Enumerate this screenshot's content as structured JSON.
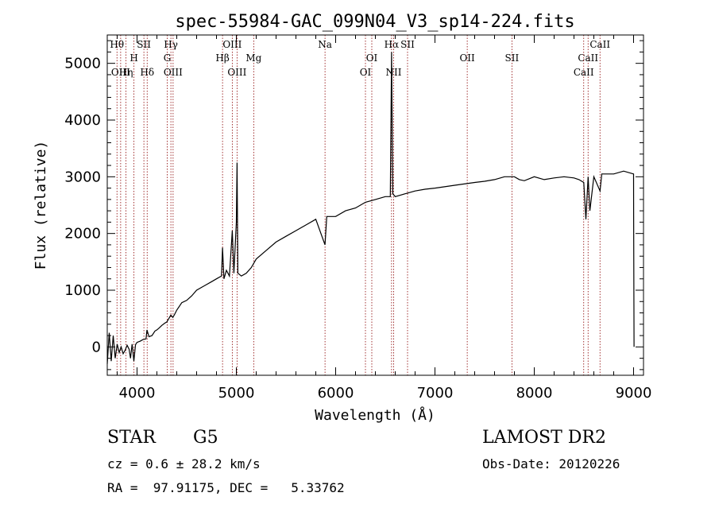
{
  "chart_data": {
    "type": "line",
    "title": "spec-55984-GAC_099N04_V3_sp14-224.fits",
    "xlabel": "Wavelength (Å)",
    "ylabel": "Flux (relative)",
    "xlim": [
      3700,
      9100
    ],
    "ylim": [
      -500,
      5500
    ],
    "xticks": [
      4000,
      5000,
      6000,
      7000,
      8000,
      9000
    ],
    "yticks": [
      0,
      1000,
      2000,
      3000,
      4000,
      5000
    ],
    "grid": false,
    "series": [
      {
        "x": [
          3700,
          3720,
          3740,
          3760,
          3780,
          3800,
          3820,
          3840,
          3860,
          3880,
          3900,
          3920,
          3934,
          3950,
          3968,
          3985,
          4000,
          4030,
          4060,
          4090,
          4100,
          4120,
          4150,
          4180,
          4200,
          4220,
          4250,
          4280,
          4300,
          4320,
          4340,
          4361,
          4380,
          4400,
          4420,
          4450,
          4500,
          4550,
          4600,
          4650,
          4700,
          4750,
          4800,
          4850,
          4861,
          4875,
          4900,
          4930,
          4959,
          4975,
          5000,
          5007,
          5015,
          5050,
          5100,
          5150,
          5200,
          5300,
          5400,
          5500,
          5600,
          5700,
          5800,
          5893,
          5910,
          6000,
          6100,
          6200,
          6300,
          6400,
          6500,
          6550,
          6563,
          6575,
          6600,
          6700,
          6800,
          6900,
          7000,
          7200,
          7400,
          7500,
          7600,
          7700,
          7800,
          7850,
          7900,
          8000,
          8100,
          8200,
          8300,
          8400,
          8450,
          8498,
          8520,
          8542,
          8560,
          8600,
          8662,
          8680,
          8700,
          8800,
          8900,
          9000,
          9001,
          9005
        ],
        "y": [
          -300,
          250,
          -250,
          200,
          -200,
          50,
          -100,
          0,
          -120,
          -60,
          30,
          -40,
          -200,
          50,
          -250,
          40,
          80,
          100,
          130,
          140,
          300,
          180,
          200,
          280,
          300,
          330,
          380,
          420,
          440,
          500,
          560,
          520,
          580,
          650,
          700,
          780,
          820,
          900,
          1000,
          1050,
          1100,
          1150,
          1200,
          1250,
          1750,
          1200,
          1350,
          1250,
          2050,
          1300,
          2200,
          3250,
          1300,
          1250,
          1300,
          1400,
          1550,
          1700,
          1850,
          1950,
          2050,
          2150,
          2250,
          1800,
          2300,
          2300,
          2400,
          2450,
          2550,
          2600,
          2650,
          2650,
          5200,
          2700,
          2650,
          2700,
          2750,
          2780,
          2800,
          2850,
          2900,
          2920,
          2950,
          3000,
          3000,
          2950,
          2930,
          3000,
          2950,
          2980,
          3000,
          2980,
          2950,
          2900,
          2250,
          3000,
          2400,
          3000,
          2750,
          3050,
          3050,
          3050,
          3100,
          3050,
          2300,
          0
        ]
      }
    ],
    "lines": [
      {
        "label": "Hθ",
        "x": 3798,
        "row": 0
      },
      {
        "label": "OIII",
        "x": 3835,
        "row": 2
      },
      {
        "label": "Hη",
        "x": 3889,
        "row": 2
      },
      {
        "label": "H",
        "x": 3969,
        "row": 1
      },
      {
        "label": "SII",
        "x": 4069,
        "row": 0
      },
      {
        "label": "Hδ",
        "x": 4102,
        "row": 2
      },
      {
        "label": "Hγ",
        "x": 4341,
        "row": 0
      },
      {
        "label": "G",
        "x": 4304,
        "row": 1
      },
      {
        "label": "OIII",
        "x": 4363,
        "row": 2
      },
      {
        "label": "OIII",
        "x": 4959,
        "row": 0
      },
      {
        "label": "Hβ",
        "x": 4861,
        "row": 1
      },
      {
        "label": "OIII",
        "x": 5007,
        "row": 2
      },
      {
        "label": "Mg",
        "x": 5175,
        "row": 1
      },
      {
        "label": "Na",
        "x": 5893,
        "row": 0
      },
      {
        "label": "OI",
        "x": 6364,
        "row": 1
      },
      {
        "label": "OI",
        "x": 6300,
        "row": 2
      },
      {
        "label": "Hα",
        "x": 6563,
        "row": 0
      },
      {
        "label": "SII",
        "x": 6724,
        "row": 0
      },
      {
        "label": "NII",
        "x": 6584,
        "row": 2
      },
      {
        "label": "OII",
        "x": 7325,
        "row": 1
      },
      {
        "label": "SII",
        "x": 7775,
        "row": 1
      },
      {
        "label": "CaII",
        "x": 8662,
        "row": 0
      },
      {
        "label": "CaII",
        "x": 8542,
        "row": 1
      },
      {
        "label": "CaII",
        "x": 8498,
        "row": 2
      }
    ]
  },
  "info": {
    "class_label": "STAR",
    "subclass": "G5",
    "release": "LAMOST DR2",
    "cz": "cz = 0.6 ± 28.2 km/s",
    "obs_date": "Obs-Date: 20120226",
    "coords": "RA =  97.91175, DEC =   5.33762"
  },
  "colors": {
    "axis": "#000000",
    "line_marker": "#8b0000",
    "spectrum": "#000000"
  }
}
